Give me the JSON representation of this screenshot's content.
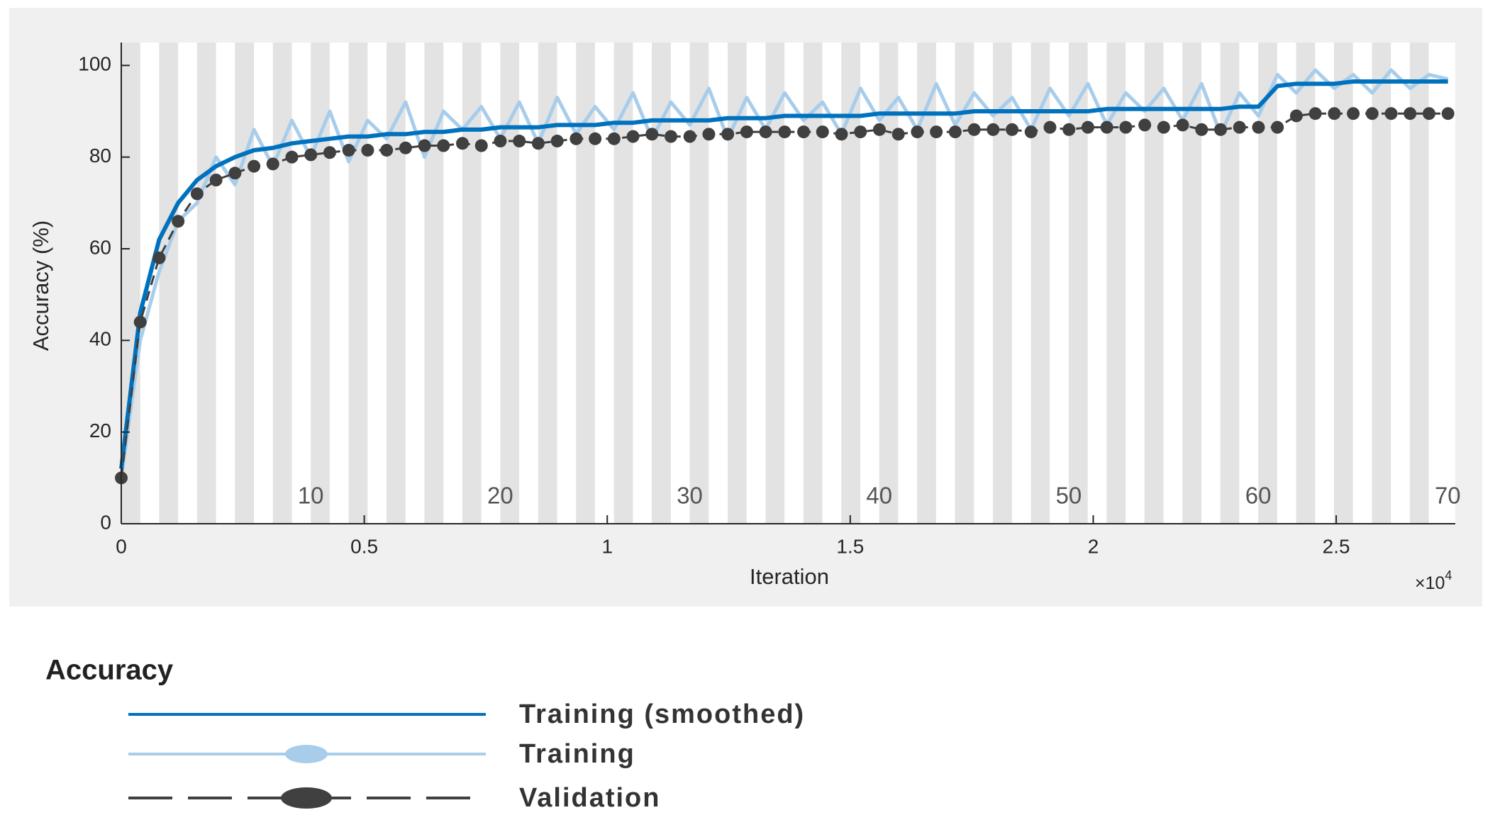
{
  "chart_data": {
    "type": "line",
    "x_label": "Iteration",
    "y_label": "Accuracy (%)",
    "x_multiplier": {
      "base": "×10",
      "exponent": "4"
    },
    "xlim": [
      0,
      2.745
    ],
    "xticks": [
      0,
      0.5,
      1,
      1.5,
      2,
      2.5
    ],
    "ylim": [
      0,
      105
    ],
    "yticks": [
      0,
      20,
      40,
      60,
      80,
      100
    ],
    "x2lim": [
      0,
      70.4
    ],
    "x2ticks": [
      10,
      20,
      30,
      40,
      50,
      60,
      70
    ],
    "legend_title": "Accuracy",
    "x": [
      0,
      0.039,
      0.078,
      0.117,
      0.156,
      0.195,
      0.234,
      0.273,
      0.312,
      0.351,
      0.39,
      0.429,
      0.468,
      0.507,
      0.546,
      0.585,
      0.624,
      0.663,
      0.702,
      0.741,
      0.78,
      0.819,
      0.858,
      0.897,
      0.936,
      0.975,
      1.014,
      1.053,
      1.092,
      1.131,
      1.17,
      1.209,
      1.248,
      1.287,
      1.326,
      1.365,
      1.404,
      1.443,
      1.482,
      1.521,
      1.56,
      1.599,
      1.638,
      1.677,
      1.716,
      1.755,
      1.794,
      1.833,
      1.872,
      1.911,
      1.95,
      1.989,
      2.028,
      2.067,
      2.106,
      2.145,
      2.184,
      2.223,
      2.262,
      2.301,
      2.34,
      2.379,
      2.418,
      2.457,
      2.496,
      2.535,
      2.574,
      2.613,
      2.652,
      2.691,
      2.73
    ],
    "series": [
      {
        "name": "Training (smoothed)",
        "color": "#0072bd",
        "style": "solid",
        "values": [
          12,
          46,
          62,
          70,
          75,
          78,
          80,
          81.5,
          82,
          83,
          83.5,
          84,
          84.5,
          84.5,
          85,
          85,
          85.5,
          85.5,
          86,
          86,
          86.5,
          86.5,
          86.5,
          87,
          87,
          87,
          87.5,
          87.5,
          88,
          88,
          88,
          88,
          88.5,
          88.5,
          88.5,
          89,
          89,
          89,
          89,
          89,
          89.5,
          89.5,
          89.5,
          89.5,
          89.5,
          90,
          90,
          90,
          90,
          90,
          90,
          90,
          90.5,
          90.5,
          90.5,
          90.5,
          90.5,
          90.5,
          90.5,
          91,
          91,
          95.5,
          96,
          96,
          96,
          96.5,
          96.5,
          96.5,
          96.5,
          96.5,
          96.5
        ]
      },
      {
        "name": "Training",
        "color": "#a8cdeb",
        "style": "raw",
        "values": [
          10,
          40,
          55,
          66,
          70,
          80,
          74,
          86,
          78,
          88,
          80,
          90,
          79,
          88,
          84,
          92,
          80,
          90,
          86,
          91,
          84,
          92,
          83,
          93,
          85,
          91,
          86,
          94,
          84,
          92,
          87,
          95,
          84,
          93,
          86,
          94,
          88,
          92,
          85,
          95,
          88,
          93,
          86,
          96,
          87,
          94,
          89,
          93,
          86,
          95,
          89,
          96,
          87,
          94,
          90,
          95,
          88,
          96,
          85,
          94,
          89,
          98,
          94,
          99,
          95,
          98,
          94,
          99,
          95,
          98,
          97
        ]
      },
      {
        "name": "Validation",
        "color": "#404040",
        "style": "dashed-markers",
        "values": [
          10,
          44,
          58,
          66,
          72,
          75,
          76.5,
          78,
          78.5,
          80,
          80.5,
          81,
          81.5,
          81.5,
          81.5,
          82,
          82.5,
          82.5,
          83,
          82.5,
          83.5,
          83.5,
          83,
          83.5,
          84,
          84,
          84,
          84.5,
          85,
          84.5,
          84.5,
          85,
          85,
          85.5,
          85.5,
          85.5,
          85.5,
          85.5,
          85,
          85.5,
          86,
          85,
          85.5,
          85.5,
          85.5,
          86,
          86,
          86,
          85.5,
          86.5,
          86,
          86.5,
          86.5,
          86.5,
          87,
          86.5,
          87,
          86,
          86,
          86.5,
          86.5,
          86.5,
          89,
          89.5,
          89.5,
          89.5,
          89.5,
          89.5,
          89.5,
          89.5,
          89.5
        ]
      }
    ]
  }
}
